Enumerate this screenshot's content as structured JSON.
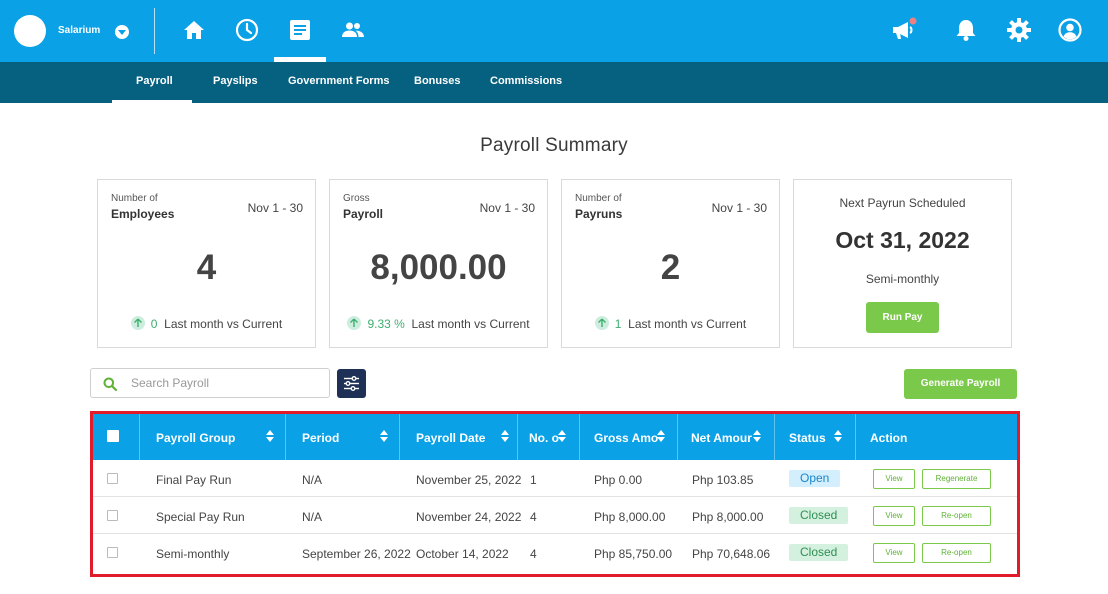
{
  "header": {
    "brand": "Salarium",
    "nav_icons": [
      "home-icon",
      "clock-icon",
      "document-icon",
      "people-icon"
    ],
    "right_icons": [
      "megaphone-icon",
      "bell-icon",
      "gear-icon",
      "user-icon"
    ],
    "tabs": [
      "Payroll",
      "Payslips",
      "Government Forms",
      "Bonuses",
      "Commissions"
    ],
    "active_tab": "Payroll"
  },
  "page_title": "Payroll Summary",
  "cards": [
    {
      "small": "Number of",
      "label": "Employees",
      "period": "Nov 1 - 30",
      "value": "4",
      "change": "0",
      "change_text": "Last month vs Current"
    },
    {
      "small": "Gross",
      "label": "Payroll",
      "period": "Nov 1 - 30",
      "value": "8,000.00",
      "change": "9.33 %",
      "change_text": "Last month vs Current"
    },
    {
      "small": "Number of",
      "label": "Payruns",
      "period": "Nov 1 - 30",
      "value": "2",
      "change": "1",
      "change_text": "Last month vs Current"
    }
  ],
  "next_payrun": {
    "title": "Next Payrun Scheduled",
    "date": "Oct 31, 2022",
    "frequency": "Semi-monthly",
    "button": "Run Pay"
  },
  "search": {
    "placeholder": "Search Payroll",
    "value": ""
  },
  "generate_button": "Generate Payroll",
  "table": {
    "headers": [
      "Payroll Group",
      "Period",
      "Payroll Date",
      "No. o",
      "Gross Amo",
      "Net Amour",
      "Status",
      "Action"
    ],
    "rows": [
      {
        "group": "Final Pay Run",
        "period": "N/A",
        "date": "November 25, 2022",
        "count": "1",
        "gross": "Php 0.00",
        "net": "Php 103.85",
        "status": "Open",
        "actions": [
          "View",
          "Regenerate"
        ]
      },
      {
        "group": "Special Pay Run",
        "period": "N/A",
        "date": "November 24, 2022",
        "count": "4",
        "gross": "Php 8,000.00",
        "net": "Php 8,000.00",
        "status": "Closed",
        "actions": [
          "View",
          "Re-open"
        ]
      },
      {
        "group": "Semi-monthly",
        "period": "September 26, 2022",
        "date": "October 14, 2022",
        "count": "4",
        "gross": "Php 85,750.00",
        "net": "Php 70,648.06",
        "status": "Closed",
        "actions": [
          "View",
          "Re-open"
        ]
      }
    ]
  },
  "colors": {
    "primary": "#0aa1e6",
    "subnav": "#06607f",
    "accent_green": "#7bc94b",
    "highlight_border": "#e21b2b",
    "filter_button": "#1f3057"
  }
}
